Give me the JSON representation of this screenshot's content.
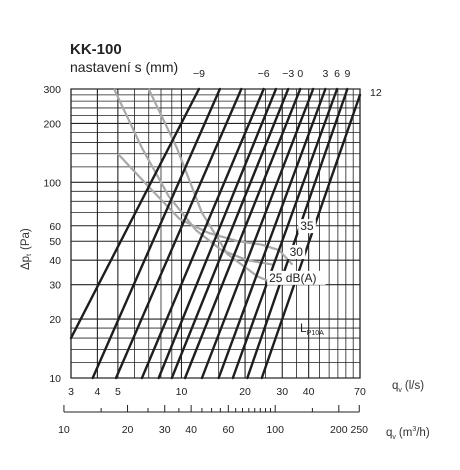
{
  "chart_data": {
    "type": "line",
    "title": "KK-100",
    "subtitle": "nastavení s (mm)",
    "xlabel_ls": "q",
    "xlabel_ls_sub": "v",
    "xlabel_ls_unit": "(l/s)",
    "xlabel_m3h": "q",
    "xlabel_m3h_sub": "v",
    "xlabel_m3h_unit_pre": "(m",
    "xlabel_m3h_unit_sup": "3",
    "xlabel_m3h_unit_post": "/h)",
    "ylabel": "Δp",
    "ylabel_sub": "t",
    "ylabel_unit": "(Pa)",
    "x_scale": "log",
    "y_scale": "log",
    "xlim_ls": [
      3,
      70
    ],
    "ylim": [
      10,
      300
    ],
    "x_ticks_ls": [
      3,
      4,
      5,
      10,
      20,
      30,
      40,
      70
    ],
    "x_ticks_m3h": [
      10,
      20,
      30,
      40,
      60,
      100,
      200,
      250
    ],
    "y_ticks": [
      10,
      20,
      30,
      40,
      50,
      60,
      100,
      200,
      300
    ],
    "grid": true,
    "series": [
      {
        "name": "−9",
        "points": [
          [
            3,
            16
          ],
          [
            12.1,
            300
          ]
        ]
      },
      {
        "name": "",
        "points": [
          [
            3.8,
            10
          ],
          [
            15.2,
            300
          ]
        ]
      },
      {
        "name": "",
        "points": [
          [
            4.9,
            10
          ],
          [
            19.2,
            300
          ]
        ]
      },
      {
        "name": "−6",
        "points": [
          [
            6.5,
            10
          ],
          [
            24.5,
            300
          ]
        ]
      },
      {
        "name": "",
        "points": [
          [
            7.8,
            10
          ],
          [
            28,
            300
          ]
        ]
      },
      {
        "name": "−3",
        "points": [
          [
            9,
            10
          ],
          [
            32,
            300
          ]
        ]
      },
      {
        "name": "0",
        "points": [
          [
            10.4,
            10
          ],
          [
            36.5,
            300
          ]
        ]
      },
      {
        "name": "",
        "points": [
          [
            12.5,
            10
          ],
          [
            42,
            300
          ]
        ]
      },
      {
        "name": "3",
        "points": [
          [
            15,
            10
          ],
          [
            48,
            300
          ]
        ]
      },
      {
        "name": "6",
        "points": [
          [
            17.5,
            10
          ],
          [
            54.5,
            300
          ]
        ]
      },
      {
        "name": "9",
        "points": [
          [
            20.5,
            10
          ],
          [
            61,
            300
          ]
        ]
      },
      {
        "name": "12",
        "points": [
          [
            24,
            10
          ],
          [
            70,
            280
          ]
        ]
      }
    ],
    "sound_curves": [
      {
        "name": "25 dB(A)",
        "points": [
          [
            7,
            300
          ],
          [
            9.5,
            150
          ],
          [
            12.5,
            70
          ],
          [
            16.5,
            43
          ],
          [
            23,
            33
          ],
          [
            28.5,
            30
          ]
        ]
      },
      {
        "name": "30",
        "points": [
          [
            4.8,
            300
          ],
          [
            6.5,
            150
          ],
          [
            8.7,
            85
          ],
          [
            11.7,
            57
          ],
          [
            15.5,
            45
          ],
          [
            20.5,
            40
          ],
          [
            27,
            38
          ]
        ]
      },
      {
        "name": "35",
        "points": [
          [
            5,
            140
          ],
          [
            7,
            95
          ],
          [
            9.8,
            65
          ],
          [
            13.5,
            55
          ],
          [
            18.5,
            50
          ],
          [
            24,
            48
          ],
          [
            29,
            45
          ],
          [
            33.5,
            38
          ]
        ]
      }
    ],
    "sound_labels": [
      {
        "text": "35",
        "at": [
          36.5,
          57
        ]
      },
      {
        "text": "30",
        "at": [
          32.5,
          42
        ]
      },
      {
        "text": "25 dB(A)",
        "at": [
          26,
          31
        ]
      }
    ],
    "lp_label": "L",
    "lp_label_sub": "P10A"
  }
}
